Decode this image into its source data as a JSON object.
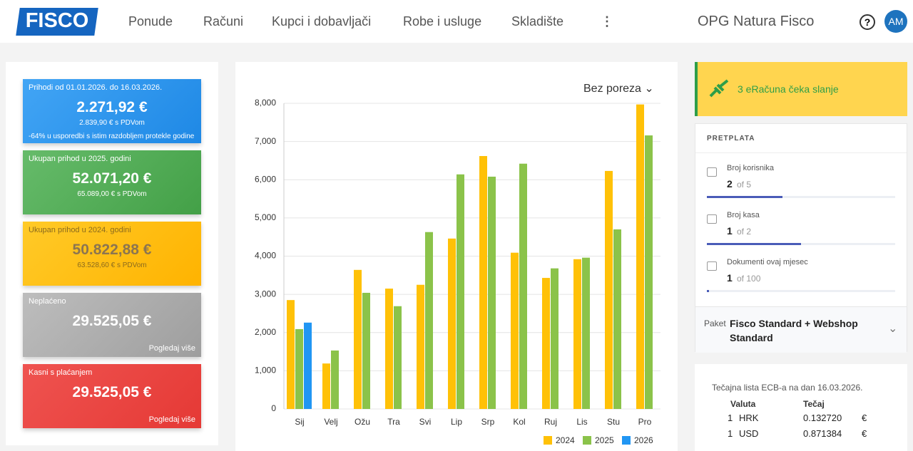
{
  "header": {
    "logo": "FISCO",
    "nav": [
      "Ponude",
      "Računi",
      "Kupci i dobavljači",
      "Robe i usluge",
      "Skladište"
    ],
    "company": "OPG Natura Fisco",
    "avatar": "AM"
  },
  "cards": [
    {
      "title": "Prihodi od 01.01.2026. do 16.03.2026.",
      "amount": "2.271,92 €",
      "subtitle": "2.839,90 € s PDVom",
      "note": "-64% u usporedbi s istim razdobljem protekle godine"
    },
    {
      "title": "Ukupan prihod u 2025. godini",
      "amount": "52.071,20 €",
      "subtitle": "65.089,00 € s PDVom"
    },
    {
      "title": "Ukupan prihod u 2024. godini",
      "amount": "50.822,88 €",
      "subtitle": "63.528,60 € s PDVom"
    },
    {
      "title": "Neplaćeno",
      "amount": "29.525,05 €",
      "link": "Pogledaj više"
    },
    {
      "title": "Kasni s plaćanjem",
      "amount": "29.525,05 €",
      "link": "Pogledaj više"
    }
  ],
  "tax_filter": "Bez poreza",
  "chart_data": {
    "type": "bar",
    "categories": [
      "Sij",
      "Velj",
      "Ožu",
      "Tra",
      "Svi",
      "Lip",
      "Srp",
      "Kol",
      "Ruj",
      "Lis",
      "Stu",
      "Pro"
    ],
    "series": [
      {
        "name": "2024",
        "color": "#ffc107",
        "values": [
          2850,
          1190,
          3640,
          3150,
          3250,
          4460,
          6620,
          4090,
          3430,
          3920,
          6230,
          7970
        ]
      },
      {
        "name": "2025",
        "color": "#8bc34a",
        "values": [
          2090,
          1530,
          3040,
          2690,
          4630,
          6140,
          6080,
          6420,
          3680,
          3960,
          4700,
          7160
        ]
      },
      {
        "name": "2026",
        "color": "#2196f3",
        "values": [
          2260,
          null,
          null,
          null,
          null,
          null,
          null,
          null,
          null,
          null,
          null,
          null
        ]
      }
    ],
    "ylim": [
      0,
      8000
    ],
    "yticks": [
      0,
      {
        "value": 1000,
        "label": "1,000"
      },
      {
        "value": 2000,
        "label": "2,000"
      },
      {
        "value": 3000,
        "label": "3,000"
      },
      {
        "value": 4000,
        "label": "4,000"
      },
      {
        "value": 5000,
        "label": "5,000"
      },
      {
        "value": 6000,
        "label": "6,000"
      },
      {
        "value": 7000,
        "label": "7,000"
      },
      {
        "value": 8000,
        "label": "8,000"
      }
    ],
    "grid": true,
    "legend": "bottom-right"
  },
  "banner": "3 eRačuna čeka slanje",
  "subscription": {
    "title": "PRETPLATA",
    "items": [
      {
        "label": "Broj korisnika",
        "value": 2,
        "limit": {
          "value": 5,
          "label": "of 5"
        }
      },
      {
        "label": "Broj kasa",
        "value": 1,
        "limit": {
          "value": 2,
          "label": "of 2"
        }
      },
      {
        "label": "Dokumenti ovaj mjesec",
        "value": 1,
        "limit": {
          "value": 100,
          "label": "of 100"
        }
      }
    ],
    "package_label": "Paket",
    "package": "Fisco Standard + Webshop Standard"
  },
  "exchange": {
    "title": "Tečajna lista ECB-a na dan 16.03.2026.",
    "headers": [
      "Valuta",
      "Tečaj"
    ],
    "rows": [
      [
        "1",
        "HRK",
        "0.132720",
        "€"
      ],
      [
        "1",
        "USD",
        "0.871384",
        "€"
      ]
    ]
  }
}
